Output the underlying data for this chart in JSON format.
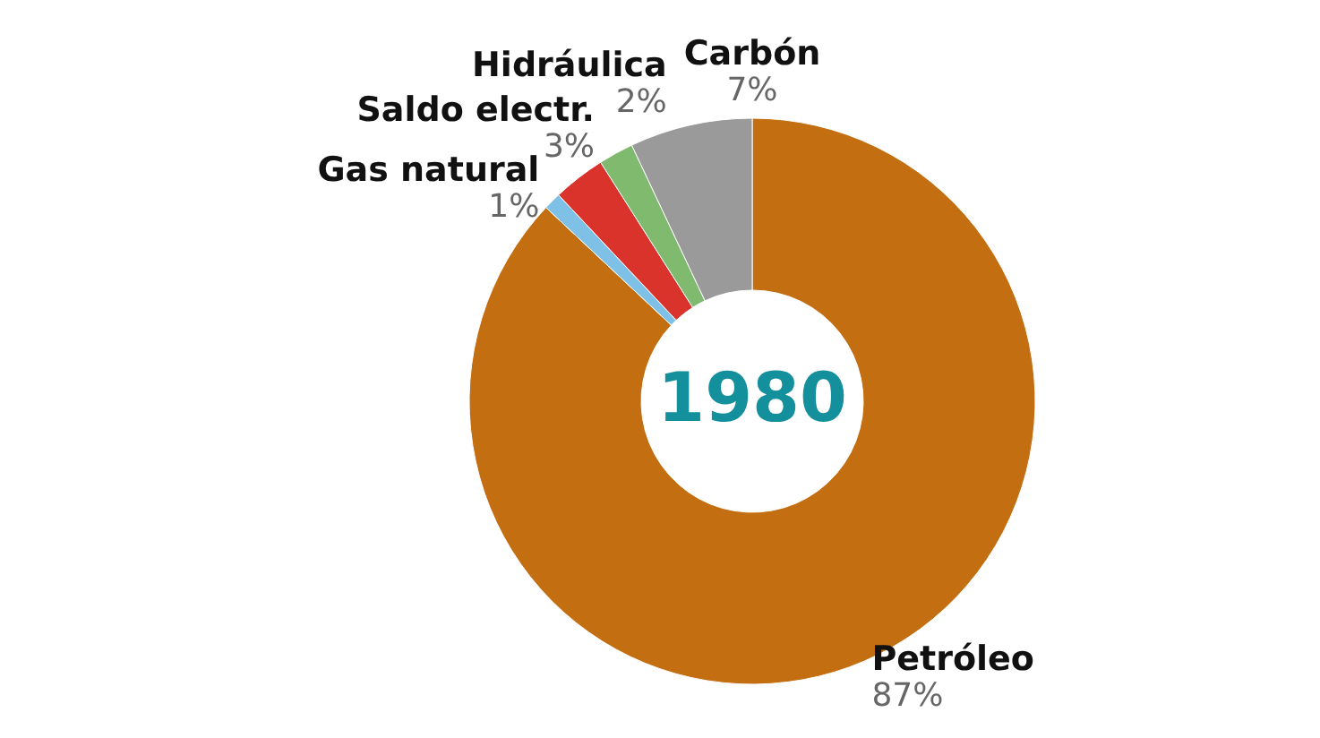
{
  "chart_data": {
    "type": "donut",
    "title": "1980",
    "categories": [
      "Petróleo",
      "Gas natural",
      "Saldo electr.",
      "Hidráulica",
      "Carbón"
    ],
    "values": [
      87,
      1,
      3,
      2,
      7
    ],
    "value_labels": [
      "87%",
      "1%",
      "3%",
      "2%",
      "7%"
    ],
    "colors": [
      "#c46e12",
      "#7fc1e6",
      "#d9332b",
      "#7fba6e",
      "#9a9a9a"
    ]
  }
}
